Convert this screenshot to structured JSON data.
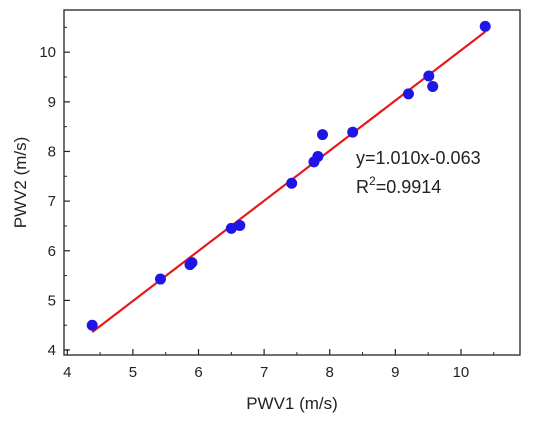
{
  "chart_data": {
    "type": "scatter",
    "xlabel": "PWV1 (m/s)",
    "ylabel": "PWV2 (m/s)",
    "xlim": [
      3.95,
      10.9
    ],
    "ylim": [
      3.9,
      10.85
    ],
    "xticks": [
      "4",
      "5",
      "6",
      "7",
      "8",
      "9",
      "10"
    ],
    "yticks": [
      "4",
      "5",
      "6",
      "7",
      "8",
      "9",
      "10"
    ],
    "grid": false,
    "points": [
      {
        "x": 4.38,
        "y": 4.5
      },
      {
        "x": 5.42,
        "y": 5.43
      },
      {
        "x": 5.87,
        "y": 5.72
      },
      {
        "x": 5.9,
        "y": 5.76
      },
      {
        "x": 6.5,
        "y": 6.45
      },
      {
        "x": 6.63,
        "y": 6.51
      },
      {
        "x": 7.42,
        "y": 7.36
      },
      {
        "x": 7.76,
        "y": 7.79
      },
      {
        "x": 7.82,
        "y": 7.9
      },
      {
        "x": 7.89,
        "y": 8.34
      },
      {
        "x": 8.35,
        "y": 8.39
      },
      {
        "x": 9.2,
        "y": 9.16
      },
      {
        "x": 9.51,
        "y": 9.52
      },
      {
        "x": 9.57,
        "y": 9.31
      },
      {
        "x": 10.37,
        "y": 10.52
      }
    ],
    "fit_line": {
      "slope": 1.01,
      "intercept": -0.063,
      "x_range": [
        4.38,
        10.37
      ]
    },
    "annotation": {
      "equation": "y=1.010x-0.063",
      "r2_prefix": "R",
      "r2_sup": "2",
      "r2_value": "=0.9914"
    },
    "colors": {
      "points": "#1f16e6",
      "fit": "#e8191c",
      "axis": "#222222"
    }
  }
}
